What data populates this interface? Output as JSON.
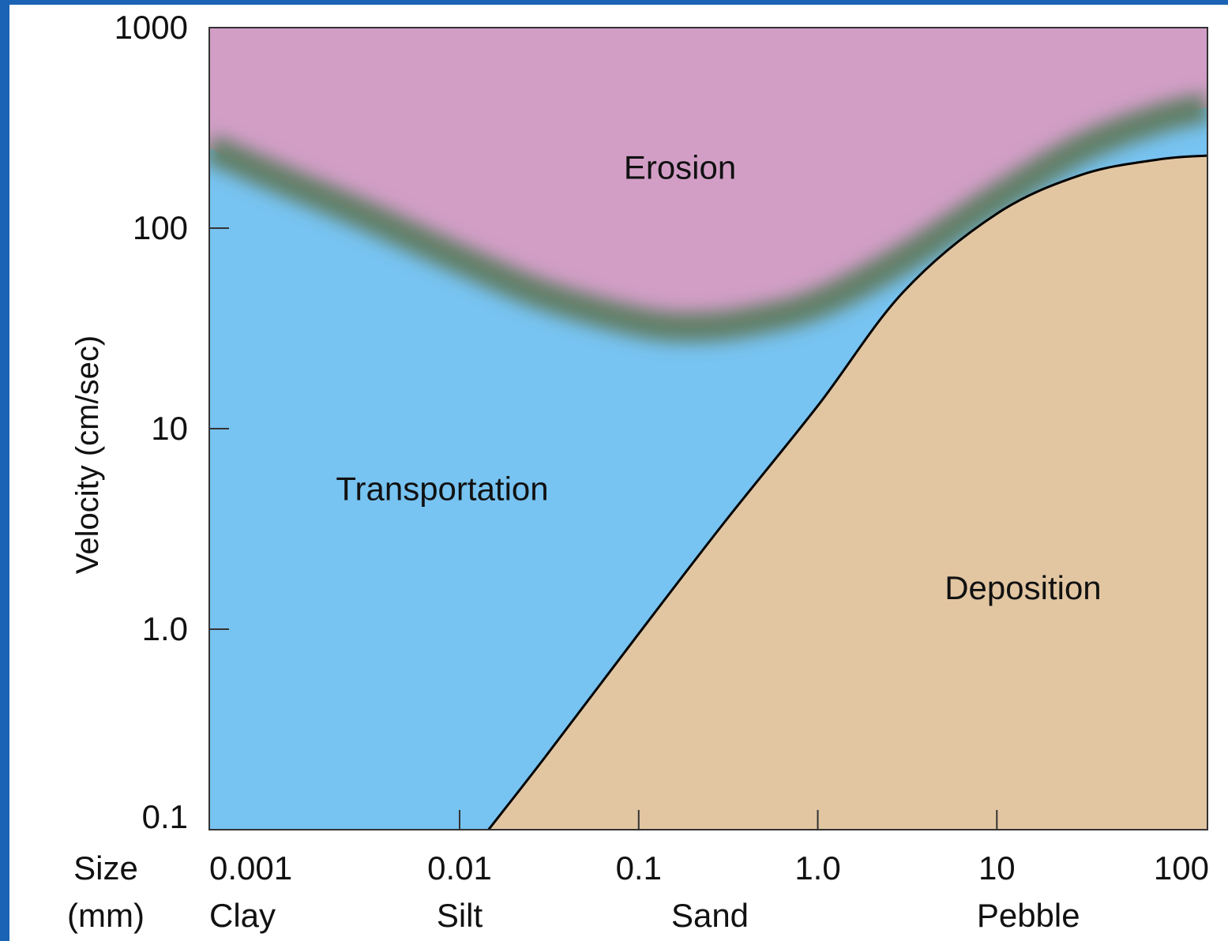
{
  "chart_data": {
    "type": "area",
    "title": "",
    "ylabel": "Velocity (cm/sec)",
    "xlabel_lines": [
      "Size",
      "(mm)"
    ],
    "x_scale": "log",
    "y_scale": "log",
    "xlim": [
      0.0004,
      150
    ],
    "ylim": [
      0.1,
      1000
    ],
    "x_ticks": [
      {
        "value": 0.001,
        "label": "0.001"
      },
      {
        "value": 0.01,
        "label": "0.01"
      },
      {
        "value": 0.1,
        "label": "0.1"
      },
      {
        "value": 1.0,
        "label": "1.0"
      },
      {
        "value": 10,
        "label": "10"
      },
      {
        "value": 100,
        "label": "100"
      }
    ],
    "y_ticks": [
      {
        "value": 1000,
        "label": "1000"
      },
      {
        "value": 100,
        "label": "100"
      },
      {
        "value": 10,
        "label": "10"
      },
      {
        "value": 1.0,
        "label": "1.0"
      },
      {
        "value": 0.1,
        "label": "0.1"
      }
    ],
    "size_classes": [
      {
        "label": "Clay",
        "x": 0.001
      },
      {
        "label": "Silt",
        "x": 0.01
      },
      {
        "label": "Sand",
        "x": 0.25
      },
      {
        "label": "Pebble",
        "x": 15
      }
    ],
    "regions": [
      {
        "name": "Erosion",
        "color": "#d29ec6",
        "label_at": [
          0.17,
          200
        ]
      },
      {
        "name": "Transportation",
        "color": "#77c3f1",
        "label_at": [
          0.008,
          5
        ]
      },
      {
        "name": "Deposition",
        "color": "#e2c6a2",
        "label_at": [
          14,
          1.6
        ]
      }
    ],
    "series": [
      {
        "role": "erosion-transport boundary",
        "x": [
          0.0004,
          0.001,
          0.003,
          0.01,
          0.03,
          0.1,
          0.2,
          0.4,
          1,
          3,
          10,
          30,
          80,
          150
        ],
        "y": [
          250,
          175,
          115,
          70,
          46,
          34,
          32,
          34,
          42,
          70,
          140,
          250,
          350,
          400
        ]
      },
      {
        "role": "deposition boundary",
        "x": [
          0.0145,
          0.03,
          0.1,
          0.3,
          1,
          3,
          10,
          30,
          80,
          150
        ],
        "y": [
          0.1,
          0.23,
          0.95,
          3.4,
          13,
          48,
          118,
          185,
          220,
          230
        ]
      }
    ],
    "colors": {
      "frame_background": "#1b63b4",
      "boundary_band": "#627f67",
      "deposition_line": "#000000"
    }
  }
}
